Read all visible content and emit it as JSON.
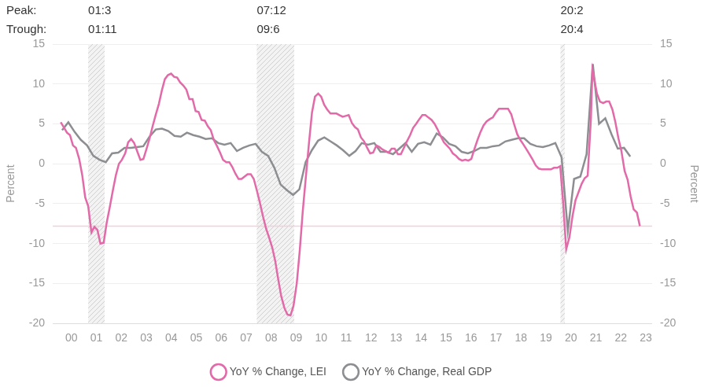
{
  "chart_data": {
    "type": "line",
    "xlim": [
      1999.75,
      2023.75
    ],
    "xticks": [
      {
        "value": 2000.5,
        "label": "00"
      },
      {
        "value": 2001.5,
        "label": "01"
      },
      {
        "value": 2002.5,
        "label": "02"
      },
      {
        "value": 2003.5,
        "label": "03"
      },
      {
        "value": 2004.5,
        "label": "04"
      },
      {
        "value": 2005.5,
        "label": "05"
      },
      {
        "value": 2006.5,
        "label": "06"
      },
      {
        "value": 2007.5,
        "label": "07"
      },
      {
        "value": 2008.5,
        "label": "08"
      },
      {
        "value": 2009.5,
        "label": "09"
      },
      {
        "value": 2010.5,
        "label": "10"
      },
      {
        "value": 2011.5,
        "label": "11"
      },
      {
        "value": 2012.5,
        "label": "12"
      },
      {
        "value": 2013.5,
        "label": "13"
      },
      {
        "value": 2014.5,
        "label": "14"
      },
      {
        "value": 2015.5,
        "label": "15"
      },
      {
        "value": 2016.5,
        "label": "16"
      },
      {
        "value": 2017.5,
        "label": "17"
      },
      {
        "value": 2018.5,
        "label": "18"
      },
      {
        "value": 2019.5,
        "label": "19"
      },
      {
        "value": 2020.5,
        "label": "20"
      },
      {
        "value": 2021.5,
        "label": "21"
      },
      {
        "value": 2022.5,
        "label": "22"
      },
      {
        "value": 2023.5,
        "label": "23"
      }
    ],
    "ylim": [
      -20,
      15
    ],
    "yticks": [
      -20,
      -15,
      -10,
      -5,
      0,
      5,
      10,
      15
    ],
    "y2lim": [
      -20,
      15
    ],
    "y2ticks": [
      -20,
      -15,
      -10,
      -5,
      0,
      5,
      10,
      15
    ],
    "ylabel": "Percent",
    "y2label": "Percent",
    "grid": true,
    "legend": "bottom",
    "recession_labels": {
      "peak": "Peak:",
      "trough": "Trough:"
    },
    "recessions": [
      {
        "peak": {
          "value": 2001.17,
          "label": "01:3"
        },
        "trough": {
          "value": 2001.83,
          "label": "01:11"
        }
      },
      {
        "peak": {
          "value": 2007.92,
          "label": "07:12"
        },
        "trough": {
          "value": 2009.42,
          "label": "09:6"
        }
      },
      {
        "peak": {
          "value": 2020.08,
          "label": "20:2"
        },
        "trough": {
          "value": 2020.25,
          "label": "20:4"
        }
      }
    ],
    "reference_line": -7.8,
    "series": [
      {
        "name": "YoY % Change, LEI",
        "color": "#e26aa8",
        "x": [
          2000.07,
          2000.19,
          2000.32,
          2000.44,
          2000.56,
          2000.68,
          2000.81,
          2000.93,
          2001.05,
          2001.17,
          2001.3,
          2001.42,
          2001.54,
          2001.66,
          2001.79,
          2001.91,
          2002.03,
          2002.16,
          2002.28,
          2002.4,
          2002.52,
          2002.65,
          2002.77,
          2002.89,
          2003.01,
          2003.14,
          2003.26,
          2003.38,
          2003.5,
          2003.63,
          2003.75,
          2003.87,
          2004.0,
          2004.12,
          2004.24,
          2004.36,
          2004.49,
          2004.61,
          2004.73,
          2004.85,
          2004.98,
          2005.1,
          2005.22,
          2005.35,
          2005.47,
          2005.59,
          2005.71,
          2005.84,
          2005.96,
          2006.08,
          2006.2,
          2006.33,
          2006.45,
          2006.57,
          2006.7,
          2006.82,
          2006.94,
          2007.06,
          2007.19,
          2007.31,
          2007.43,
          2007.55,
          2007.68,
          2007.8,
          2007.92,
          2008.04,
          2008.17,
          2008.29,
          2008.41,
          2008.54,
          2008.66,
          2008.78,
          2008.9,
          2009.03,
          2009.15,
          2009.27,
          2009.39,
          2009.52,
          2009.64,
          2009.76,
          2009.89,
          2010.01,
          2010.13,
          2010.25,
          2010.38,
          2010.5,
          2010.62,
          2010.74,
          2010.87,
          2010.99,
          2011.11,
          2011.23,
          2011.36,
          2011.48,
          2011.6,
          2011.73,
          2011.85,
          2011.97,
          2012.09,
          2012.22,
          2012.34,
          2012.46,
          2012.58,
          2012.71,
          2012.83,
          2012.95,
          2013.08,
          2013.2,
          2013.32,
          2013.44,
          2013.57,
          2013.69,
          2013.81,
          2013.93,
          2014.06,
          2014.18,
          2014.3,
          2014.43,
          2014.55,
          2014.67,
          2014.79,
          2014.92,
          2015.04,
          2015.16,
          2015.28,
          2015.41,
          2015.53,
          2015.65,
          2015.77,
          2015.9,
          2016.02,
          2016.14,
          2016.27,
          2016.39,
          2016.51,
          2016.63,
          2016.76,
          2016.88,
          2017.0,
          2017.12,
          2017.25,
          2017.37,
          2017.49,
          2017.62,
          2017.74,
          2017.86,
          2017.98,
          2018.11,
          2018.23,
          2018.35,
          2018.47,
          2018.6,
          2018.72,
          2018.84,
          2018.97,
          2019.09,
          2019.21,
          2019.33,
          2019.46,
          2019.58,
          2019.7,
          2019.82,
          2019.95,
          2020.07,
          2020.19,
          2020.31,
          2020.44,
          2020.56,
          2020.68,
          2020.81,
          2020.93,
          2021.05,
          2021.17,
          2021.3,
          2021.36,
          2021.42,
          2021.54,
          2021.66,
          2021.79,
          2021.91,
          2022.03,
          2022.16,
          2022.28,
          2022.4,
          2022.52,
          2022.65,
          2022.77,
          2022.89,
          2023.01,
          2023.14,
          2023.26
        ],
        "values": [
          5.2,
          4.6,
          3.9,
          3.6,
          2.3,
          2.0,
          0.6,
          -1.4,
          -4.2,
          -5.3,
          -8.6,
          -7.9,
          -8.3,
          -10.0,
          -9.9,
          -7.4,
          -5.5,
          -3.3,
          -1.4,
          0.0,
          0.5,
          1.3,
          2.7,
          3.1,
          2.6,
          1.5,
          0.5,
          0.6,
          1.8,
          3.2,
          4.7,
          6.1,
          7.5,
          9.2,
          10.6,
          11.1,
          11.3,
          10.9,
          10.8,
          10.2,
          9.8,
          9.3,
          8.1,
          8.1,
          6.6,
          6.5,
          5.5,
          5.4,
          4.7,
          4.2,
          3.0,
          2.2,
          1.4,
          0.5,
          0.2,
          0.2,
          -0.4,
          -1.2,
          -1.9,
          -1.9,
          -1.6,
          -1.3,
          -1.3,
          -1.9,
          -3.3,
          -4.8,
          -6.6,
          -8.1,
          -9.2,
          -10.5,
          -12.2,
          -14.5,
          -16.6,
          -18.1,
          -18.9,
          -19.0,
          -17.8,
          -15.0,
          -10.9,
          -6.0,
          -1.5,
          2.6,
          6.4,
          8.4,
          8.8,
          8.4,
          7.4,
          6.8,
          6.3,
          6.3,
          6.3,
          6.1,
          5.9,
          6.0,
          6.1,
          5.1,
          4.6,
          4.3,
          3.3,
          2.8,
          2.0,
          1.3,
          1.4,
          2.3,
          2.1,
          1.8,
          1.6,
          1.4,
          1.9,
          1.9,
          1.2,
          1.2,
          2.0,
          2.8,
          3.6,
          4.5,
          5.0,
          5.6,
          6.1,
          6.1,
          5.8,
          5.5,
          5.0,
          4.3,
          3.5,
          2.7,
          2.3,
          1.9,
          1.3,
          1.0,
          0.6,
          0.4,
          0.5,
          0.4,
          0.6,
          1.8,
          3.0,
          4.0,
          4.8,
          5.3,
          5.6,
          5.8,
          6.4,
          6.9,
          6.9,
          6.9,
          6.9,
          6.2,
          4.9,
          3.7,
          3.0,
          2.4,
          1.8,
          1.2,
          0.5,
          -0.2,
          -0.6,
          -0.7,
          -0.7,
          -0.7,
          -0.7,
          -0.5,
          -0.5,
          -0.3,
          -5.0,
          -10.7,
          -9.2,
          -6.6,
          -4.6,
          -3.5,
          -2.5,
          -1.8,
          -1.5,
          5.7,
          11.7,
          10.8,
          8.8,
          7.8,
          7.6,
          7.8,
          7.8,
          6.8,
          5.2,
          3.2,
          1.6,
          -0.9,
          -2.0,
          -4.1,
          -5.7,
          -6.1,
          -7.8
        ]
      },
      {
        "name": "YoY % Change, Real GDP",
        "color": "#8c8e92",
        "axis": "y2",
        "x": [
          2000.125,
          2000.375,
          2000.625,
          2000.875,
          2001.125,
          2001.375,
          2001.625,
          2001.875,
          2002.125,
          2002.375,
          2002.625,
          2002.875,
          2003.125,
          2003.375,
          2003.625,
          2003.875,
          2004.125,
          2004.375,
          2004.625,
          2004.875,
          2005.125,
          2005.375,
          2005.625,
          2005.875,
          2006.125,
          2006.375,
          2006.625,
          2006.875,
          2007.125,
          2007.375,
          2007.625,
          2007.875,
          2008.125,
          2008.375,
          2008.625,
          2008.875,
          2009.125,
          2009.375,
          2009.625,
          2009.875,
          2010.125,
          2010.375,
          2010.625,
          2010.875,
          2011.125,
          2011.375,
          2011.625,
          2011.875,
          2012.125,
          2012.375,
          2012.625,
          2012.875,
          2013.125,
          2013.375,
          2013.625,
          2013.875,
          2014.125,
          2014.375,
          2014.625,
          2014.875,
          2015.125,
          2015.375,
          2015.625,
          2015.875,
          2016.125,
          2016.375,
          2016.625,
          2016.875,
          2017.125,
          2017.375,
          2017.625,
          2017.875,
          2018.125,
          2018.375,
          2018.625,
          2018.875,
          2019.125,
          2019.375,
          2019.625,
          2019.875,
          2020.125,
          2020.375,
          2020.625,
          2020.875,
          2021.125,
          2021.375,
          2021.625,
          2021.875,
          2022.125,
          2022.375,
          2022.625,
          2022.875
        ],
        "values": [
          4.2,
          5.2,
          4.0,
          3.0,
          2.3,
          1.0,
          0.5,
          0.2,
          1.3,
          1.4,
          2.0,
          2.0,
          2.1,
          2.2,
          3.4,
          4.3,
          4.4,
          4.1,
          3.5,
          3.4,
          3.9,
          3.6,
          3.4,
          3.1,
          3.2,
          2.6,
          2.4,
          2.6,
          1.6,
          2.0,
          2.3,
          2.5,
          1.5,
          1.0,
          -0.5,
          -2.6,
          -3.3,
          -3.9,
          -3.2,
          0.2,
          1.7,
          2.9,
          3.3,
          2.8,
          2.3,
          1.7,
          1.0,
          1.6,
          2.6,
          2.4,
          2.6,
          1.5,
          1.5,
          1.2,
          1.9,
          2.6,
          1.5,
          2.5,
          2.7,
          2.4,
          3.8,
          3.3,
          2.5,
          2.2,
          1.5,
          1.3,
          1.6,
          2.0,
          2.0,
          2.2,
          2.3,
          2.8,
          3.0,
          3.2,
          3.2,
          2.5,
          2.2,
          2.1,
          2.3,
          2.6,
          0.8,
          -8.4,
          -1.9,
          -1.6,
          1.2,
          12.5,
          5.0,
          5.7,
          3.7,
          1.9,
          2.0,
          0.9
        ]
      }
    ]
  }
}
